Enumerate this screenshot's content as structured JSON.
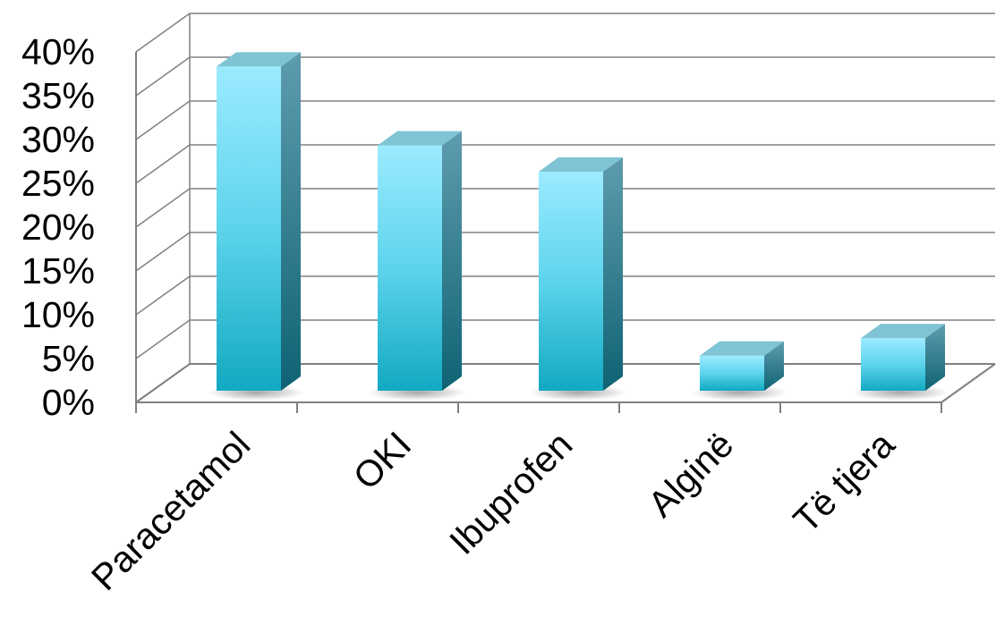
{
  "chart_data": {
    "type": "bar",
    "title": "",
    "xlabel": "",
    "ylabel": "",
    "categories": [
      "Paracetamol",
      "OKI",
      "Ibuprofen",
      "Alginë",
      "Të tjera"
    ],
    "values": [
      37,
      28,
      25,
      4,
      6
    ],
    "value_unit": "%",
    "ylim": [
      0,
      40
    ],
    "yticks": [
      "0%",
      "5%",
      "10%",
      "15%",
      "20%",
      "25%",
      "30%",
      "35%",
      "40%"
    ],
    "grid": true,
    "legend": "none",
    "style": "3d-column",
    "colors": {
      "bar_light": "#9CEBFF",
      "bar_mid": "#33C4DD",
      "bar_dark": "#0E9BB2",
      "bar_side": "#156F80",
      "bar_top": "#7FC4D4",
      "grid": "#808080"
    }
  }
}
